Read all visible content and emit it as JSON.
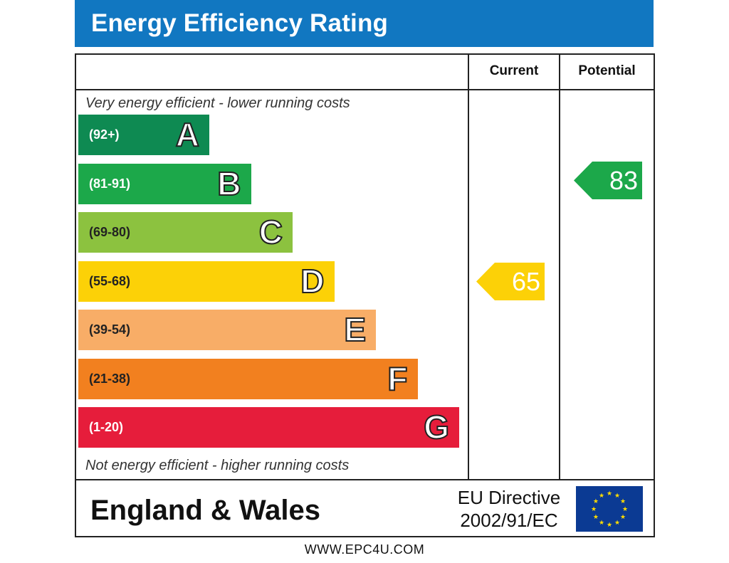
{
  "title": "Energy Efficiency Rating",
  "columns": {
    "current": "Current",
    "potential": "Potential"
  },
  "notes": {
    "top": "Very energy efficient - lower running costs",
    "bottom": "Not energy efficient - higher running costs"
  },
  "chart_data": {
    "type": "bar",
    "bands": [
      {
        "letter": "A",
        "range": "(92+)",
        "color": "#0e8a52"
      },
      {
        "letter": "B",
        "range": "(81-91)",
        "color": "#1ca84a"
      },
      {
        "letter": "C",
        "range": "(69-80)",
        "color": "#8cc23f"
      },
      {
        "letter": "D",
        "range": "(55-68)",
        "color": "#fcd107"
      },
      {
        "letter": "E",
        "range": "(39-54)",
        "color": "#f8ad67"
      },
      {
        "letter": "F",
        "range": "(21-38)",
        "color": "#f2801f"
      },
      {
        "letter": "G",
        "range": "(1-20)",
        "color": "#e61d3b"
      }
    ],
    "current": {
      "value": 65,
      "band": "D",
      "color": "#fcd107"
    },
    "potential": {
      "value": 83,
      "band": "B",
      "color": "#1ca84a"
    }
  },
  "footer": {
    "region": "England & Wales",
    "directive_line1": "EU Directive",
    "directive_line2": "2002/91/EC",
    "flag_icon": "eu-flag-icon",
    "flag_color": "#0b3a93",
    "star_color": "#ffdd00"
  },
  "website": "WWW.EPC4U.COM"
}
